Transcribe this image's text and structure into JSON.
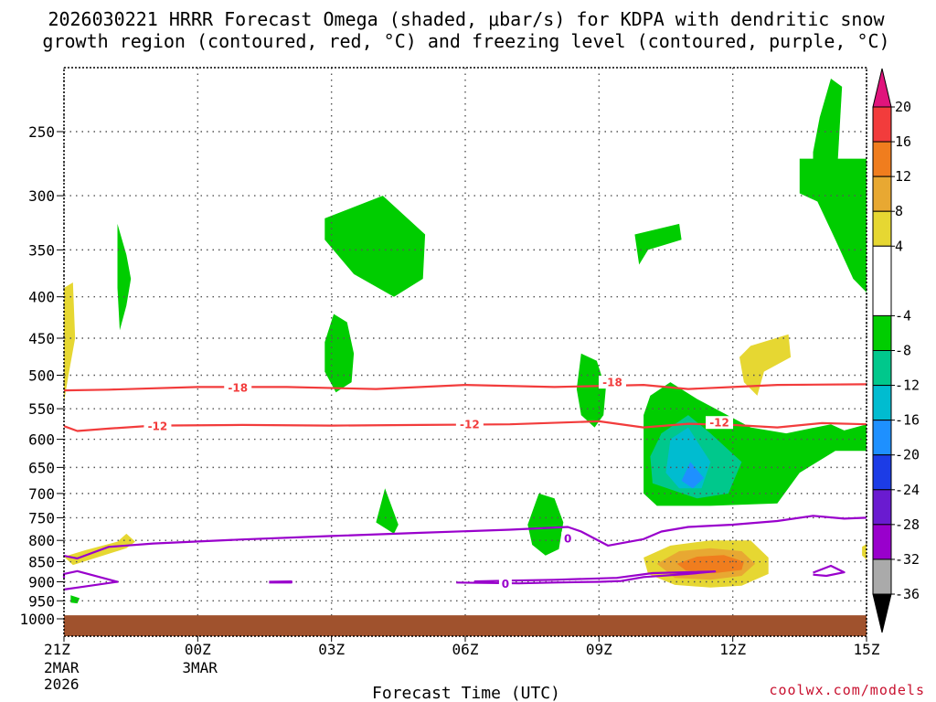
{
  "chart_data": {
    "type": "heatmap",
    "title_line1": "2026030221 HRRR Forecast Omega (shaded, μbar/s) for KDPA with dendritic snow",
    "title_line2": "growth region (contoured, red, °C) and freezing level (contoured, purple, °C)",
    "xlabel": "Forecast Time (UTC)",
    "ylabel": "",
    "credit": "coolwx.com/models",
    "x_hours_range": [
      0,
      18
    ],
    "y_pressure_range": [
      1030,
      190
    ],
    "x_ticks": [
      {
        "h": 0,
        "label": "21Z",
        "sub1": "2MAR",
        "sub2": "2026"
      },
      {
        "h": 3,
        "label": "00Z",
        "sub1": "3MAR",
        "sub2": ""
      },
      {
        "h": 6,
        "label": "03Z",
        "sub1": "",
        "sub2": ""
      },
      {
        "h": 9,
        "label": "06Z",
        "sub1": "",
        "sub2": ""
      },
      {
        "h": 12,
        "label": "09Z",
        "sub1": "",
        "sub2": ""
      },
      {
        "h": 15,
        "label": "12Z",
        "sub1": "",
        "sub2": ""
      },
      {
        "h": 18,
        "label": "15Z",
        "sub1": "",
        "sub2": ""
      }
    ],
    "y_ticks": [
      250,
      300,
      350,
      400,
      450,
      500,
      550,
      600,
      650,
      700,
      750,
      800,
      850,
      900,
      950,
      1000
    ],
    "ground": {
      "p_top": 990,
      "p_bottom": 1030,
      "color": "#a0522d"
    },
    "colorbar": {
      "labels": [
        "20",
        "16",
        "12",
        "8",
        "4",
        "-4",
        "-8",
        "-12",
        "-16",
        "-20",
        "-24",
        "-28",
        "-32",
        "-36"
      ],
      "top_triangle_color": "#e0147c",
      "bottom_triangle_color": "#000000",
      "bins": [
        {
          "from": 20,
          "to": 16,
          "color": "#f23c3c"
        },
        {
          "from": 16,
          "to": 12,
          "color": "#f07d1e"
        },
        {
          "from": 12,
          "to": 8,
          "color": "#e8a832"
        },
        {
          "from": 8,
          "to": 4,
          "color": "#e6d732"
        },
        {
          "from": 4,
          "to": -4,
          "color": "#ffffff"
        },
        {
          "from": -4,
          "to": -8,
          "color": "#00cd00"
        },
        {
          "from": -8,
          "to": -12,
          "color": "#00c88c"
        },
        {
          "from": -12,
          "to": -16,
          "color": "#00bcd0"
        },
        {
          "from": -16,
          "to": -20,
          "color": "#1e90ff"
        },
        {
          "from": -20,
          "to": -24,
          "color": "#1c3ce6"
        },
        {
          "from": -24,
          "to": -28,
          "color": "#6a1bd0"
        },
        {
          "from": -28,
          "to": -32,
          "color": "#9900cc"
        },
        {
          "from": -32,
          "to": -36,
          "color": "#aaaaaa"
        }
      ]
    },
    "omega_regions": [
      {
        "name": "upward-w1",
        "color": "#e6d732",
        "pts": [
          [
            0.0,
            390
          ],
          [
            0.2,
            384
          ],
          [
            0.25,
            450
          ],
          [
            0.1,
            500
          ],
          [
            0.0,
            540
          ],
          [
            -0.5,
            520
          ],
          [
            -0.45,
            450
          ]
        ]
      },
      {
        "name": "upward-w2",
        "color": "#e6d732",
        "pts": [
          [
            0.0,
            838
          ],
          [
            0.5,
            822
          ],
          [
            1.2,
            803
          ],
          [
            1.4,
            785
          ],
          [
            1.6,
            803
          ],
          [
            1.4,
            818
          ],
          [
            0.8,
            838
          ],
          [
            0.2,
            858
          ]
        ]
      },
      {
        "name": "up-green-a",
        "color": "#00cd00",
        "pts": [
          [
            1.2,
            325
          ],
          [
            1.4,
            355
          ],
          [
            1.5,
            380
          ],
          [
            1.4,
            410
          ],
          [
            1.25,
            440
          ],
          [
            1.2,
            390
          ]
        ]
      },
      {
        "name": "up-green-b",
        "color": "#00cd00",
        "pts": [
          [
            0.15,
            935
          ],
          [
            0.35,
            943
          ],
          [
            0.3,
            957
          ],
          [
            0.15,
            955
          ]
        ]
      },
      {
        "name": "up-green-c",
        "color": "#00cd00",
        "pts": [
          [
            5.85,
            320
          ],
          [
            7.15,
            300
          ],
          [
            8.1,
            335
          ],
          [
            8.05,
            380
          ],
          [
            7.4,
            400
          ],
          [
            6.5,
            375
          ],
          [
            5.85,
            340
          ]
        ]
      },
      {
        "name": "up-green-d",
        "color": "#00cd00",
        "pts": [
          [
            6.05,
            420
          ],
          [
            6.35,
            430
          ],
          [
            6.5,
            470
          ],
          [
            6.45,
            510
          ],
          [
            6.1,
            525
          ],
          [
            5.85,
            495
          ],
          [
            5.85,
            455
          ]
        ]
      },
      {
        "name": "up-green-e",
        "color": "#00cd00",
        "pts": [
          [
            7.2,
            690
          ],
          [
            7.5,
            765
          ],
          [
            7.4,
            785
          ],
          [
            7.0,
            760
          ]
        ]
      },
      {
        "name": "up-green-f",
        "color": "#00cd00",
        "pts": [
          [
            11.6,
            470
          ],
          [
            11.95,
            480
          ],
          [
            12.15,
            520
          ],
          [
            12.1,
            560
          ],
          [
            11.9,
            580
          ],
          [
            11.6,
            560
          ],
          [
            11.5,
            520
          ]
        ]
      },
      {
        "name": "up-green-g",
        "color": "#00cd00",
        "pts": [
          [
            10.65,
            700
          ],
          [
            11.0,
            710
          ],
          [
            11.2,
            760
          ],
          [
            11.1,
            820
          ],
          [
            10.8,
            835
          ],
          [
            10.5,
            810
          ],
          [
            10.4,
            765
          ]
        ]
      },
      {
        "name": "up-green-h",
        "color": "#00cd00",
        "pts": [
          [
            12.8,
            335
          ],
          [
            13.8,
            325
          ],
          [
            13.85,
            340
          ],
          [
            13.1,
            350
          ],
          [
            12.9,
            365
          ]
        ]
      },
      {
        "name": "up-green-i",
        "color": "#00cd00",
        "pts": [
          [
            16.8,
            280
          ],
          [
            17.35,
            275
          ],
          [
            17.45,
            220
          ],
          [
            17.2,
            215
          ],
          [
            16.95,
            240
          ],
          [
            16.8,
            265
          ]
        ]
      },
      {
        "name": "up-green-j",
        "color": "#00cd00",
        "pts": [
          [
            16.5,
            270
          ],
          [
            18.0,
            270
          ],
          [
            18.0,
            395
          ],
          [
            17.7,
            380
          ],
          [
            17.3,
            340
          ],
          [
            16.9,
            305
          ],
          [
            16.5,
            298
          ]
        ]
      },
      {
        "name": "up-green-k",
        "color": "#00cd00",
        "pts": [
          [
            13.6,
            510
          ],
          [
            14.2,
            535
          ],
          [
            15.4,
            580
          ],
          [
            16.2,
            590
          ],
          [
            17.2,
            575
          ],
          [
            17.5,
            585
          ],
          [
            18.0,
            575
          ],
          [
            18.0,
            620
          ],
          [
            17.3,
            620
          ],
          [
            16.5,
            660
          ],
          [
            16.0,
            720
          ],
          [
            14.5,
            725
          ],
          [
            13.3,
            725
          ],
          [
            13.0,
            700
          ],
          [
            13.0,
            640
          ],
          [
            13.0,
            560
          ],
          [
            13.15,
            530
          ]
        ]
      },
      {
        "name": "up-cyan-1",
        "color": "#00c88c",
        "pts": [
          [
            14.0,
            560
          ],
          [
            14.5,
            590
          ],
          [
            15.2,
            640
          ],
          [
            14.9,
            700
          ],
          [
            14.2,
            710
          ],
          [
            13.2,
            680
          ],
          [
            13.15,
            630
          ],
          [
            13.4,
            590
          ]
        ]
      },
      {
        "name": "up-cyan-2",
        "color": "#00bcd0",
        "pts": [
          [
            14.0,
            580
          ],
          [
            14.5,
            640
          ],
          [
            14.3,
            690
          ],
          [
            13.8,
            690
          ],
          [
            13.5,
            660
          ],
          [
            13.6,
            600
          ]
        ]
      },
      {
        "name": "up-blue-1",
        "color": "#1e90ff",
        "pts": [
          [
            14.05,
            640
          ],
          [
            14.35,
            670
          ],
          [
            14.1,
            690
          ],
          [
            13.85,
            675
          ]
        ]
      },
      {
        "name": "up-yellow-s",
        "color": "#e6d732",
        "pts": [
          [
            15.4,
            460
          ],
          [
            16.25,
            445
          ],
          [
            16.3,
            475
          ],
          [
            15.7,
            495
          ],
          [
            15.55,
            530
          ],
          [
            15.25,
            510
          ],
          [
            15.15,
            475
          ]
        ]
      },
      {
        "name": "down-yellow",
        "color": "#e6d732",
        "pts": [
          [
            13.0,
            840
          ],
          [
            13.6,
            812
          ],
          [
            14.5,
            800
          ],
          [
            15.4,
            800
          ],
          [
            15.8,
            840
          ],
          [
            15.8,
            880
          ],
          [
            15.2,
            910
          ],
          [
            14.5,
            915
          ],
          [
            13.7,
            908
          ],
          [
            13.1,
            880
          ]
        ]
      },
      {
        "name": "down-gold",
        "color": "#e8a832",
        "pts": [
          [
            13.3,
            855
          ],
          [
            13.8,
            825
          ],
          [
            14.5,
            818
          ],
          [
            15.2,
            825
          ],
          [
            15.5,
            855
          ],
          [
            15.2,
            885
          ],
          [
            14.5,
            895
          ],
          [
            13.7,
            890
          ]
        ]
      },
      {
        "name": "down-orange",
        "color": "#f07d1e",
        "pts": [
          [
            13.75,
            855
          ],
          [
            14.2,
            838
          ],
          [
            14.8,
            834
          ],
          [
            15.25,
            850
          ],
          [
            15.2,
            870
          ],
          [
            14.6,
            878
          ],
          [
            13.95,
            872
          ]
        ]
      },
      {
        "name": "down-yellow-r",
        "color": "#e6d732",
        "pts": [
          [
            17.9,
            815
          ],
          [
            18.0,
            808
          ],
          [
            18.0,
            845
          ],
          [
            17.9,
            835
          ]
        ]
      }
    ],
    "temperature_contours": [
      {
        "label": "-18",
        "color": "#f23c3c",
        "label_at": [
          3.9,
          518,
          12.3,
          510
        ],
        "pts": [
          [
            -1.0,
            522
          ],
          [
            1.0,
            521
          ],
          [
            3.0,
            517
          ],
          [
            5.0,
            517
          ],
          [
            7.0,
            520
          ],
          [
            9.0,
            514
          ],
          [
            11.0,
            517
          ],
          [
            13.0,
            514
          ],
          [
            14.0,
            520
          ],
          [
            15.0,
            517
          ],
          [
            16.0,
            514
          ],
          [
            18.0,
            513
          ]
        ]
      },
      {
        "label": "-12",
        "color": "#f23c3c",
        "label_at": [
          2.1,
          578,
          9.1,
          575,
          14.7,
          572
        ],
        "pts": [
          [
            -1.0,
            578
          ],
          [
            0.3,
            586
          ],
          [
            1.0,
            582
          ],
          [
            2.0,
            577
          ],
          [
            4.0,
            576
          ],
          [
            6.0,
            577
          ],
          [
            8.0,
            576
          ],
          [
            10.0,
            575
          ],
          [
            12.0,
            570
          ],
          [
            13.0,
            580
          ],
          [
            14.0,
            574
          ],
          [
            15.0,
            576
          ],
          [
            16.0,
            580
          ],
          [
            17.0,
            573
          ],
          [
            18.0,
            575
          ]
        ]
      }
    ],
    "freezing_contours": [
      {
        "label": "0",
        "color": "#9900cc",
        "label_at": [
          11.3,
          795
        ],
        "pts": [
          [
            -1.0,
            836
          ],
          [
            0.3,
            842
          ],
          [
            1.0,
            815
          ],
          [
            2.0,
            807
          ],
          [
            4.0,
            798
          ],
          [
            6.0,
            790
          ],
          [
            8.0,
            783
          ],
          [
            10.0,
            776
          ],
          [
            11.3,
            770
          ],
          [
            11.6,
            780
          ],
          [
            12.2,
            812
          ],
          [
            13.0,
            797
          ],
          [
            13.4,
            780
          ],
          [
            14.0,
            770
          ],
          [
            15.0,
            765
          ],
          [
            16.0,
            757
          ],
          [
            16.8,
            746
          ],
          [
            17.5,
            752
          ],
          [
            18.0,
            750
          ]
        ]
      },
      {
        "label": "",
        "color": "#9900cc",
        "label_at": [],
        "pts": [
          [
            -1.0,
            890
          ],
          [
            -0.5,
            880
          ],
          [
            0.3,
            873
          ],
          [
            1.2,
            900
          ],
          [
            0.3,
            915
          ],
          [
            -1.0,
            920
          ]
        ]
      },
      {
        "label": "",
        "color": "#9900cc",
        "label_at": [],
        "pts": [
          [
            4.6,
            900
          ],
          [
            5.1,
            899
          ],
          [
            5.1,
            902
          ],
          [
            4.6,
            902
          ]
        ]
      },
      {
        "label": "0",
        "color": "#9900cc",
        "label_at": [
          9.9,
          905
        ],
        "pts": [
          [
            8.8,
            902
          ],
          [
            10.2,
            904
          ],
          [
            11.0,
            902
          ],
          [
            12.0,
            900
          ],
          [
            12.5,
            898
          ],
          [
            13.0,
            888
          ],
          [
            14.0,
            880
          ],
          [
            14.6,
            874
          ],
          [
            13.2,
            878
          ],
          [
            12.4,
            890
          ],
          [
            11.0,
            895
          ],
          [
            10.0,
            897
          ],
          [
            9.2,
            899
          ]
        ]
      },
      {
        "label": "",
        "color": "#9900cc",
        "label_at": [],
        "pts": [
          [
            16.8,
            877
          ],
          [
            17.2,
            860
          ],
          [
            17.5,
            876
          ],
          [
            17.1,
            885
          ],
          [
            16.8,
            882
          ]
        ]
      }
    ]
  }
}
